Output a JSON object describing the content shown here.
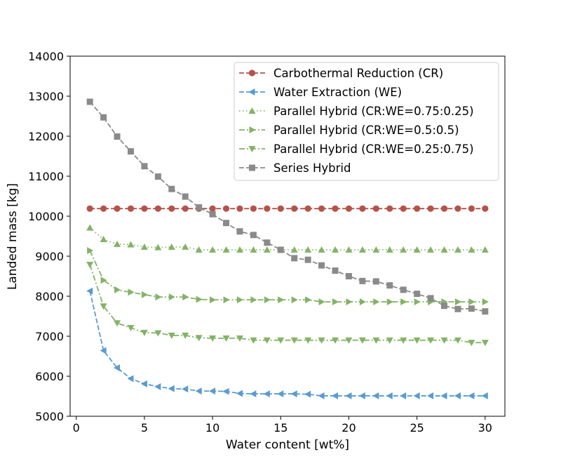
{
  "chart_data": {
    "type": "line",
    "title": "",
    "xlabel": "Water content [wt%]",
    "ylabel": "Landed mass [kg]",
    "xlim": [
      -0.45,
      31.45
    ],
    "ylim": [
      5000,
      14000
    ],
    "xticks": [
      0,
      5,
      10,
      15,
      20,
      25,
      30
    ],
    "yticks": [
      5000,
      6000,
      7000,
      8000,
      9000,
      10000,
      11000,
      12000,
      13000,
      14000
    ],
    "grid": false,
    "legend_position": "top-right",
    "x": [
      1,
      2,
      3,
      4,
      5,
      6,
      7,
      8,
      9,
      10,
      11,
      12,
      13,
      14,
      15,
      16,
      17,
      18,
      19,
      20,
      21,
      22,
      23,
      24,
      25,
      26,
      27,
      28,
      29,
      30
    ],
    "series": [
      {
        "name": "Carbothermal Reduction (CR)",
        "color": "#b5524a",
        "linestyle": "dashed",
        "marker": "circle",
        "values": [
          10190,
          10190,
          10190,
          10190,
          10190,
          10190,
          10190,
          10190,
          10190,
          10190,
          10190,
          10190,
          10190,
          10190,
          10190,
          10190,
          10190,
          10190,
          10190,
          10190,
          10190,
          10190,
          10190,
          10190,
          10190,
          10190,
          10190,
          10190,
          10190,
          10190
        ]
      },
      {
        "name": "Water Extraction (WE)",
        "color": "#5a9bd0",
        "linestyle": "dashed",
        "marker": "triangle-left",
        "values": [
          8130,
          6640,
          6210,
          5940,
          5810,
          5740,
          5690,
          5680,
          5630,
          5630,
          5620,
          5570,
          5560,
          5560,
          5560,
          5560,
          5550,
          5510,
          5510,
          5510,
          5510,
          5510,
          5510,
          5510,
          5510,
          5510,
          5510,
          5510,
          5510,
          5510
        ]
      },
      {
        "name": "Parallel Hybrid (CR:WE=0.75:0.25)",
        "color": "#82b366",
        "linestyle": "dotted",
        "marker": "triangle-up",
        "values": [
          9710,
          9420,
          9300,
          9290,
          9230,
          9220,
          9230,
          9230,
          9160,
          9160,
          9160,
          9160,
          9160,
          9160,
          9160,
          9160,
          9160,
          9160,
          9160,
          9160,
          9160,
          9160,
          9160,
          9160,
          9160,
          9160,
          9160,
          9160,
          9160,
          9160
        ]
      },
      {
        "name": "Parallel Hybrid (CR:WE=0.5:0.5)",
        "color": "#82b366",
        "linestyle": "dashdot",
        "marker": "triangle-right",
        "values": [
          9140,
          8400,
          8160,
          8100,
          8040,
          7980,
          7980,
          7980,
          7920,
          7910,
          7910,
          7910,
          7910,
          7910,
          7910,
          7910,
          7910,
          7860,
          7860,
          7860,
          7860,
          7860,
          7860,
          7860,
          7860,
          7860,
          7860,
          7860,
          7860,
          7860
        ]
      },
      {
        "name": "Parallel Hybrid (CR:WE=0.25:0.75)",
        "color": "#82b366",
        "linestyle": "dashdot",
        "marker": "triangle-down",
        "values": [
          8790,
          7750,
          7330,
          7210,
          7090,
          7080,
          7020,
          7020,
          6960,
          6950,
          6950,
          6950,
          6900,
          6900,
          6900,
          6900,
          6900,
          6900,
          6900,
          6900,
          6900,
          6900,
          6900,
          6900,
          6900,
          6900,
          6900,
          6900,
          6840,
          6840
        ]
      },
      {
        "name": "Series Hybrid",
        "color": "#8a8a8a",
        "linestyle": "dashed",
        "marker": "square",
        "values": [
          12860,
          12470,
          11990,
          11620,
          11250,
          10990,
          10680,
          10490,
          10220,
          10050,
          9830,
          9620,
          9530,
          9340,
          9160,
          8950,
          8910,
          8770,
          8640,
          8500,
          8380,
          8370,
          8270,
          8160,
          8060,
          7950,
          7760,
          7680,
          7690,
          7620
        ]
      }
    ]
  }
}
